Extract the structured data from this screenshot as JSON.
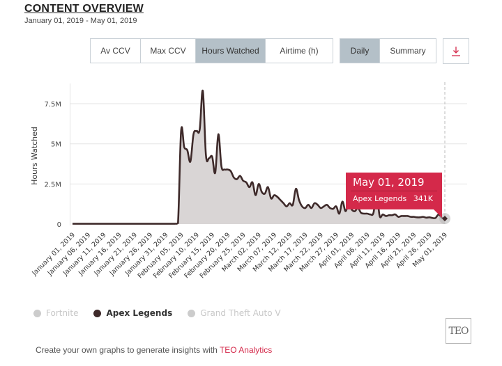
{
  "header": {
    "title": "CONTENT OVERVIEW",
    "date_range": "January 01, 2019 - May 01, 2019"
  },
  "metric_tabs": [
    {
      "label": "Av CCV",
      "active": false
    },
    {
      "label": "Max CCV",
      "active": false
    },
    {
      "label": "Hours Watched",
      "active": true
    },
    {
      "label": "Airtime (h)",
      "active": false
    }
  ],
  "period_tabs": [
    {
      "label": "Daily",
      "active": true
    },
    {
      "label": "Summary",
      "active": false
    }
  ],
  "download_icon": "download-icon",
  "colors": {
    "accent": "#d4294a",
    "series_line": "#3e2a2a",
    "area_fill": "#d9d5d5",
    "active_tab": "#b4c0c8",
    "legend_off": "#cccccc"
  },
  "chart_data": {
    "type": "area",
    "title": "",
    "xlabel": "",
    "ylabel": "Hours Watched",
    "ylim": [
      0,
      8500000
    ],
    "y_ticks": [
      0,
      2500000,
      5000000,
      7500000
    ],
    "y_tick_labels": [
      "0",
      "2.5M",
      "5M",
      "7.5M"
    ],
    "x_tick_labels": [
      "January 01, 2019",
      "January 06, 2019",
      "January 11, 2019",
      "January 16, 2019",
      "January 21, 2019",
      "January 26, 2019",
      "January 31, 2019",
      "February 05, 2019",
      "February 10, 2019",
      "February 15, 2019",
      "February 20, 2019",
      "February 25, 2019",
      "March 02, 2019",
      "March 07, 2019",
      "March 12, 2019",
      "March 17, 2019",
      "March 22, 2019",
      "March 27, 2019",
      "April 01, 2019",
      "April 06, 2019",
      "April 11, 2019",
      "April 16, 2019",
      "April 21, 2019",
      "April 26, 2019",
      "May 01, 2019"
    ],
    "x_tick_interval_days": 5,
    "grid": true,
    "legend_position": "bottom-left",
    "series": [
      {
        "name": "Fortnite",
        "visible": false,
        "color": "#cccccc"
      },
      {
        "name": "Apex Legends",
        "visible": true,
        "color": "#3e2a2a",
        "start_date": "January 01, 2019",
        "values": [
          20000,
          20000,
          20000,
          20000,
          20000,
          20000,
          20000,
          20000,
          20000,
          20000,
          20000,
          20000,
          20000,
          20000,
          20000,
          20000,
          20000,
          20000,
          20000,
          20000,
          20000,
          20000,
          20000,
          20000,
          20000,
          20000,
          20000,
          20000,
          20000,
          20000,
          20000,
          20000,
          20000,
          20000,
          60000,
          5800000,
          4800000,
          4600000,
          3900000,
          5600000,
          5800000,
          5900000,
          8300000,
          4300000,
          4100000,
          4200000,
          3200000,
          5600000,
          3600000,
          3400000,
          3400000,
          3300000,
          2900000,
          2800000,
          3000000,
          2700000,
          2600000,
          2300000,
          2600000,
          1800000,
          2500000,
          2000000,
          1900000,
          2300000,
          1600000,
          1800000,
          1700000,
          1500000,
          1300000,
          1100000,
          1300000,
          1200000,
          2200000,
          1500000,
          1100000,
          1000000,
          1200000,
          1000000,
          1300000,
          1200000,
          1000000,
          1100000,
          1200000,
          1000000,
          950000,
          1100000,
          650000,
          1400000,
          800000,
          1300000,
          900000,
          800000,
          1000000,
          700000,
          650000,
          650000,
          600000,
          700000,
          1900000,
          500000,
          600000,
          500000,
          550000,
          550000,
          600000,
          450000,
          500000,
          500000,
          500000,
          450000,
          450000,
          420000,
          420000,
          450000,
          400000,
          420000,
          380000,
          380000,
          600000,
          400000,
          341000
        ]
      },
      {
        "name": "Grand Theft Auto V",
        "visible": false,
        "color": "#cccccc"
      }
    ],
    "tooltip": {
      "date": "May 01, 2019",
      "series": "Apex Legends",
      "value": "341K"
    }
  },
  "legend": [
    {
      "label": "Fortnite",
      "state": "off"
    },
    {
      "label": "Apex Legends",
      "state": "on"
    },
    {
      "label": "Grand Theft Auto V",
      "state": "off"
    }
  ],
  "logo_text": "TEO",
  "footer": {
    "text": "Create your own graphs to generate insights with ",
    "link": "TEO Analytics"
  }
}
